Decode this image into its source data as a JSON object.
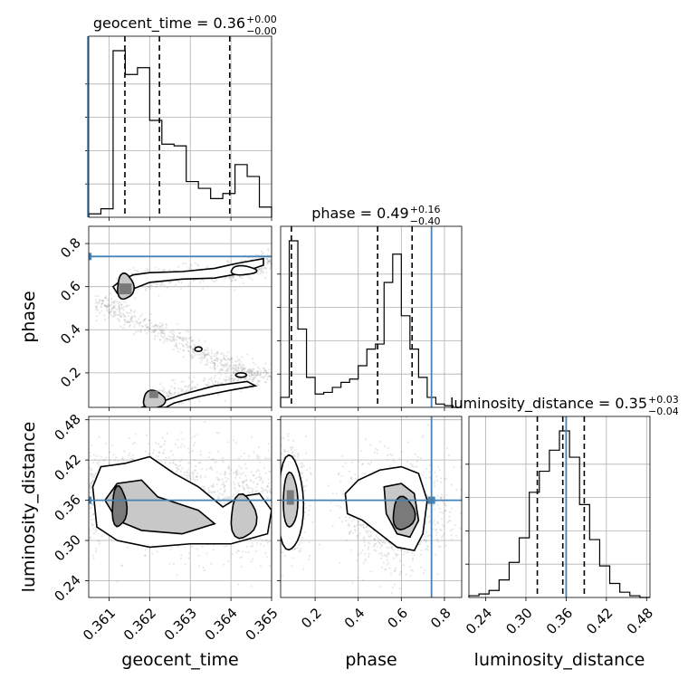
{
  "chart_data": [
    {
      "type": "histogram",
      "parameter": "geocent_time",
      "title": "geocent_time = 0.36",
      "title_sup": "+0.00",
      "title_sub": "−0.00",
      "xlim": [
        0.3605,
        0.365
      ],
      "bins": [
        0.3605,
        0.3608,
        0.3611,
        0.3614,
        0.3617,
        0.362,
        0.3623,
        0.3626,
        0.3629,
        0.3632,
        0.3635,
        0.3638,
        0.3641,
        0.3644,
        0.3647,
        0.365
      ],
      "heights": [
        2,
        5,
        98,
        84,
        88,
        57,
        43,
        42,
        21,
        17,
        11,
        14,
        31,
        24,
        6
      ],
      "quantiles": [
        0.36139,
        0.36224,
        0.36397
      ],
      "truth": 0.36048,
      "grid": true
    },
    {
      "type": "histogram",
      "parameter": "phase",
      "title": "phase = 0.49",
      "title_sup": "+0.16",
      "title_sub": "−0.40",
      "xlim": [
        0.04,
        0.88
      ],
      "bins": [
        0.04,
        0.08,
        0.12,
        0.16,
        0.2,
        0.24,
        0.28,
        0.32,
        0.36,
        0.4,
        0.44,
        0.48,
        0.52,
        0.56,
        0.6,
        0.64,
        0.68,
        0.72,
        0.76,
        0.8,
        0.84,
        0.88
      ],
      "heights": [
        6,
        100,
        47,
        18,
        8,
        9,
        12,
        15,
        17,
        25,
        35,
        38,
        75,
        92,
        55,
        35,
        18,
        6,
        2,
        1,
        0
      ],
      "quantiles": [
        0.09,
        0.49,
        0.65
      ],
      "truth": 0.74,
      "grid": true
    },
    {
      "type": "histogram",
      "parameter": "luminosity_distance",
      "title": "luminosity_distance = 0.35",
      "title_sup": "+0.03",
      "title_sub": "−0.04",
      "xlim": [
        0.215,
        0.485
      ],
      "bins": [
        0.215,
        0.23,
        0.245,
        0.26,
        0.275,
        0.29,
        0.305,
        0.32,
        0.335,
        0.35,
        0.365,
        0.38,
        0.395,
        0.41,
        0.425,
        0.44,
        0.455,
        0.47,
        0.485
      ],
      "heights": [
        1,
        2,
        4,
        10,
        20,
        34,
        60,
        72,
        84,
        95,
        80,
        53,
        33,
        18,
        8,
        3,
        1,
        0
      ],
      "quantiles": [
        0.317,
        0.355,
        0.387
      ],
      "truth": 0.36,
      "grid": true
    },
    {
      "type": "scatter",
      "x": "geocent_time",
      "y": "phase",
      "xlim": [
        0.3605,
        0.365
      ],
      "ylim": [
        0.04,
        0.88
      ],
      "truth": [
        0.36048,
        0.74
      ],
      "ridge": [
        [
          0.3607,
          0.52
        ],
        [
          0.3611,
          0.5
        ],
        [
          0.3615,
          0.45
        ],
        [
          0.362,
          0.41
        ],
        [
          0.3625,
          0.37
        ],
        [
          0.363,
          0.32
        ],
        [
          0.3635,
          0.27
        ],
        [
          0.364,
          0.23
        ],
        [
          0.3645,
          0.2
        ],
        [
          0.365,
          0.18
        ]
      ],
      "upper_band": [
        [
          0.3613,
          0.6
        ],
        [
          0.3618,
          0.63
        ],
        [
          0.3624,
          0.645
        ],
        [
          0.3632,
          0.655
        ],
        [
          0.364,
          0.67
        ],
        [
          0.3645,
          0.69
        ],
        [
          0.365,
          0.72
        ]
      ],
      "lower_band": [
        [
          0.362,
          0.07
        ],
        [
          0.3626,
          0.1
        ],
        [
          0.3633,
          0.13
        ],
        [
          0.364,
          0.16
        ],
        [
          0.3645,
          0.19
        ]
      ],
      "grid": true
    },
    {
      "type": "scatter",
      "x": "geocent_time",
      "y": "luminosity_distance",
      "xlim": [
        0.3605,
        0.365
      ],
      "ylim": [
        0.215,
        0.485
      ],
      "truth": [
        0.36048,
        0.36
      ],
      "grid": true
    },
    {
      "type": "scatter",
      "x": "phase",
      "y": "luminosity_distance",
      "xlim": [
        0.04,
        0.88
      ],
      "ylim": [
        0.215,
        0.485
      ],
      "truth": [
        0.74,
        0.36
      ],
      "grid": true
    }
  ],
  "axes": {
    "geocent_time": {
      "label": "geocent_time",
      "ticks": [
        0.361,
        0.362,
        0.363,
        0.364,
        0.365
      ],
      "ticklabels": [
        "0.361",
        "0.362",
        "0.363",
        "0.364",
        "0.365"
      ]
    },
    "phase": {
      "label": "phase",
      "ticks": [
        0.2,
        0.4,
        0.6,
        0.8
      ],
      "ticklabels": [
        "0.2",
        "0.4",
        "0.6",
        "0.8"
      ]
    },
    "luminosity_distance": {
      "label": "luminosity_distance",
      "ticks": [
        0.24,
        0.3,
        0.36,
        0.42,
        0.48
      ],
      "ticklabels": [
        "0.24",
        "0.30",
        "0.36",
        "0.42",
        "0.48"
      ]
    }
  },
  "colors": {
    "truth": "#4682b4",
    "hist": "#000000",
    "scatter": "#7f7f7f",
    "grid": "#b0b0b0"
  }
}
